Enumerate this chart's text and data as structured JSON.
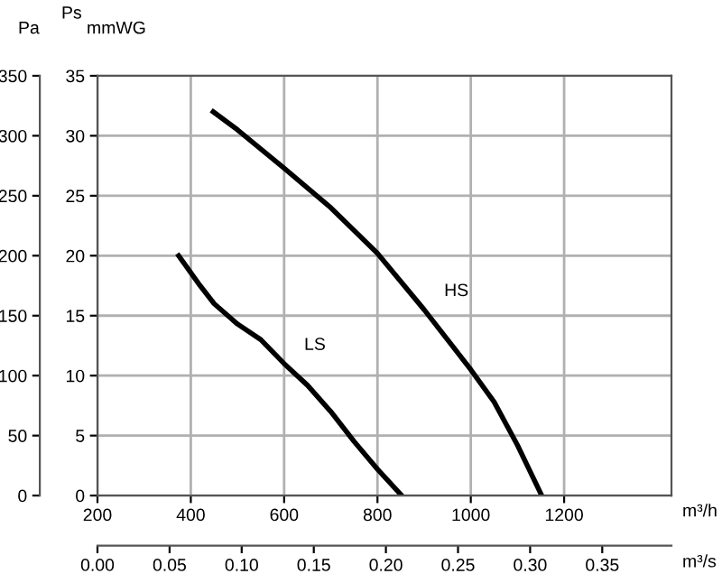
{
  "chart_data": {
    "type": "line",
    "xlabel": "m³/h",
    "x2label": "m³/s",
    "ylabel": "mmWG",
    "y2label": "Pa",
    "xlim": [
      200,
      1430
    ],
    "xticks": [
      200,
      400,
      600,
      800,
      1000,
      1200
    ],
    "x2lim": [
      0,
      0.398
    ],
    "x2ticks": [
      {
        "value": 0,
        "label": "0.00"
      },
      {
        "value": 0.05,
        "label": "0.05"
      },
      {
        "value": 0.1,
        "label": "0.10"
      },
      {
        "value": 0.15,
        "label": "0.15"
      },
      {
        "value": 0.2,
        "label": "0.20"
      },
      {
        "value": 0.25,
        "label": "0.25"
      },
      {
        "value": 0.3,
        "label": "0.30"
      },
      {
        "value": 0.35,
        "label": "0.35"
      }
    ],
    "ylim": [
      0,
      35
    ],
    "yticks": [
      0,
      5,
      10,
      15,
      20,
      25,
      30,
      35
    ],
    "y2lim": [
      0,
      350
    ],
    "y2ticks": [
      0,
      50,
      100,
      150,
      200,
      250,
      300,
      350
    ],
    "grid": true,
    "legend": false,
    "marker": "none",
    "line_style": "solid",
    "series": [
      {
        "name": "LS",
        "color": "#000000",
        "x": [
          374,
          420,
          450,
          500,
          550,
          600,
          650,
          700,
          750,
          800,
          852
        ],
        "values": [
          20,
          17.5,
          16,
          14.3,
          13,
          11,
          9.2,
          7,
          4.5,
          2.2,
          0
        ]
      },
      {
        "name": "HS",
        "color": "#000000",
        "x": [
          448,
          500,
          600,
          700,
          800,
          900,
          1000,
          1050,
          1100,
          1152
        ],
        "values": [
          32,
          30.5,
          27.3,
          24,
          20.2,
          15.5,
          10.5,
          7.8,
          4.2,
          0
        ]
      }
    ],
    "annotations": [
      "Ps"
    ]
  }
}
